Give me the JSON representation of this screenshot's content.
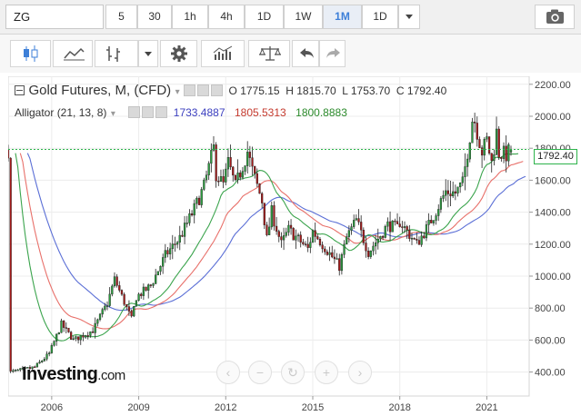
{
  "symbol": "ZG",
  "timeframes": [
    {
      "label": "5",
      "active": false
    },
    {
      "label": "30",
      "active": false
    },
    {
      "label": "1h",
      "active": false
    },
    {
      "label": "4h",
      "active": false
    },
    {
      "label": "1D",
      "active": false
    },
    {
      "label": "1W",
      "active": false
    },
    {
      "label": "1M",
      "active": true
    },
    {
      "label": "1D",
      "active": false
    }
  ],
  "legend": {
    "title": "Gold Futures, M, (CFD)",
    "ohlc": "O 1775.15  H 1815.70  L 1753.70  C 1792.40",
    "indicator": "Alligator (21, 13, 8)",
    "jaw": "1733.4887",
    "teeth": "1805.5313",
    "lips": "1800.8883"
  },
  "last_price": "1792.40",
  "logo": {
    "main": "Investing",
    "suffix": ".com"
  },
  "colors": {
    "up": "#2c9c3f",
    "down": "#a31b1b",
    "jaw": "#5b6fd6",
    "teeth": "#e8706a",
    "lips": "#3ba44d",
    "price_line": "#2cb34a"
  },
  "chart_data": {
    "type": "candlestick",
    "title": "Gold Futures, M, (CFD)",
    "interval": "monthly",
    "x_range": [
      "2004-07",
      "2021-11"
    ],
    "x_ticks": [
      "2006",
      "2009",
      "2012",
      "2015",
      "2018",
      "2021"
    ],
    "y_ticks": [
      "400.00",
      "600.00",
      "800.00",
      "1000.00",
      "1200.00",
      "1400.00",
      "1600.00",
      "1800.00",
      "2000.00",
      "2200.00"
    ],
    "ylim": [
      250,
      2250
    ],
    "last_close": 1792.4,
    "price_path": [
      [
        "2004-08",
        400
      ],
      [
        "2005-06",
        430
      ],
      [
        "2005-12",
        515
      ],
      [
        "2006-05",
        700
      ],
      [
        "2006-10",
        600
      ],
      [
        "2007-06",
        660
      ],
      [
        "2007-12",
        830
      ],
      [
        "2008-03",
        980
      ],
      [
        "2008-10",
        730
      ],
      [
        "2008-12",
        870
      ],
      [
        "2009-06",
        940
      ],
      [
        "2009-12",
        1130
      ],
      [
        "2010-06",
        1240
      ],
      [
        "2010-12",
        1420
      ],
      [
        "2011-04",
        1560
      ],
      [
        "2011-08",
        1800
      ],
      [
        "2011-09",
        1640
      ],
      [
        "2011-12",
        1570
      ],
      [
        "2012-02",
        1710
      ],
      [
        "2012-05",
        1560
      ],
      [
        "2012-10",
        1780
      ],
      [
        "2012-12",
        1660
      ],
      [
        "2013-04",
        1470
      ],
      [
        "2013-06",
        1230
      ],
      [
        "2013-08",
        1400
      ],
      [
        "2013-12",
        1200
      ],
      [
        "2014-03",
        1290
      ],
      [
        "2014-11",
        1170
      ],
      [
        "2015-01",
        1280
      ],
      [
        "2015-12",
        1060
      ],
      [
        "2016-03",
        1240
      ],
      [
        "2016-07",
        1350
      ],
      [
        "2016-12",
        1150
      ],
      [
        "2017-08",
        1320
      ],
      [
        "2017-12",
        1300
      ],
      [
        "2018-01",
        1340
      ],
      [
        "2018-08",
        1200
      ],
      [
        "2019-01",
        1320
      ],
      [
        "2019-08",
        1530
      ],
      [
        "2019-12",
        1520
      ],
      [
        "2020-03",
        1580
      ],
      [
        "2020-07",
        1980
      ],
      [
        "2020-08",
        1970
      ],
      [
        "2020-11",
        1780
      ],
      [
        "2021-01",
        1850
      ],
      [
        "2021-03",
        1710
      ],
      [
        "2021-05",
        1900
      ],
      [
        "2021-06",
        1770
      ],
      [
        "2021-09",
        1760
      ],
      [
        "2021-11",
        1792
      ]
    ],
    "indicator": {
      "name": "Alligator (21, 13, 8)",
      "series": [
        {
          "name": "jaw",
          "last": 1733.4887
        },
        {
          "name": "teeth",
          "last": 1805.5313
        },
        {
          "name": "lips",
          "last": 1800.8883
        }
      ]
    },
    "grid": true,
    "axis_position": "right"
  }
}
